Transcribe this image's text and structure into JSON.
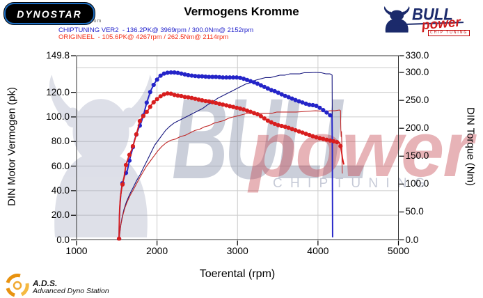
{
  "header": {
    "dynostar": {
      "text": "DYNOSTAR",
      "suffix": ".com"
    },
    "title": "Vermogens Kromme",
    "bull_logo": {
      "bull": "BULL",
      "power": "power",
      "chip": "CHIP TUNING"
    }
  },
  "legend": {
    "chiptuning": "CHIPTUNING VER2  - 136.2PK@ 3969rpm / 300.0Nm@ 2152rpm",
    "origineel": "ORIGINEEL  - 105.6PK@ 4267rpm / 262.5Nm@ 2114rpm",
    "chiptuning_color": "#2222cc",
    "origineel_color": "#f53018"
  },
  "watermark": {
    "bull": "BULL",
    "power": "power",
    "chip_tuning": "C H I P   T U N I N G"
  },
  "footer": {
    "ads_abbr": "A.D.S.",
    "ads_full": "Advanced Dyno Station"
  },
  "chart_data": {
    "type": "line",
    "title": "Vermogens Kromme",
    "xlabel": "Toerental (rpm)",
    "ylabel_left": "DIN Motor Vermogen (pk)",
    "ylabel_right": "DIN Torque (Nm)",
    "xlim": [
      1000,
      5000
    ],
    "left_ylim": [
      0,
      149.8
    ],
    "right_ylim": [
      0,
      330
    ],
    "x_ticks": [
      1000,
      2000,
      3000,
      4000,
      5000
    ],
    "left_ticks": [
      149.8,
      120,
      100,
      80,
      60,
      40,
      20,
      0
    ],
    "right_ticks": [
      330,
      300,
      250,
      200,
      150,
      100,
      50,
      0
    ],
    "grid_h_left_values": [
      20,
      40,
      60,
      80,
      100,
      120,
      140
    ],
    "grid_v_rpm": [
      2000,
      3000,
      4000
    ],
    "peaks": {
      "chiptuning_power_pk": 136.2,
      "chiptuning_power_rpm": 3969,
      "chiptuning_torque_nm": 300.0,
      "chiptuning_torque_rpm": 2152,
      "origineel_power_pk": 105.6,
      "origineel_power_rpm": 4267,
      "origineel_torque_nm": 262.5,
      "origineel_torque_rpm": 2114
    },
    "series": [
      {
        "name": "chiptuning_power",
        "axis": "left",
        "unit": "pk",
        "color": "#16167e",
        "width": 1.1,
        "marker": false,
        "points": [
          [
            1530,
            2
          ],
          [
            1545,
            10
          ],
          [
            1565,
            18
          ],
          [
            1590,
            25
          ],
          [
            1620,
            31
          ],
          [
            1660,
            37
          ],
          [
            1700,
            42
          ],
          [
            1745,
            48
          ],
          [
            1790,
            53
          ],
          [
            1835,
            59
          ],
          [
            1880,
            65
          ],
          [
            1925,
            71
          ],
          [
            1970,
            77
          ],
          [
            2015,
            81
          ],
          [
            2060,
            85
          ],
          [
            2105,
            89
          ],
          [
            2152,
            92
          ],
          [
            2210,
            95
          ],
          [
            2270,
            97
          ],
          [
            2330,
            99
          ],
          [
            2390,
            101
          ],
          [
            2450,
            103
          ],
          [
            2510,
            105
          ],
          [
            2570,
            107
          ],
          [
            2630,
            110
          ],
          [
            2690,
            112
          ],
          [
            2750,
            115
          ],
          [
            2810,
            117
          ],
          [
            2870,
            119
          ],
          [
            2930,
            121
          ],
          [
            2990,
            123
          ],
          [
            3050,
            125
          ],
          [
            3110,
            127
          ],
          [
            3170,
            128
          ],
          [
            3230,
            130
          ],
          [
            3290,
            131
          ],
          [
            3350,
            132
          ],
          [
            3410,
            132
          ],
          [
            3470,
            133
          ],
          [
            3530,
            134
          ],
          [
            3590,
            134
          ],
          [
            3650,
            135
          ],
          [
            3710,
            135
          ],
          [
            3770,
            135
          ],
          [
            3830,
            136
          ],
          [
            3890,
            136
          ],
          [
            3969,
            136.2
          ],
          [
            4040,
            136
          ],
          [
            4100,
            135
          ],
          [
            4150,
            135
          ],
          [
            4176,
            134
          ],
          [
            4178,
            90
          ],
          [
            4180,
            40
          ],
          [
            4182,
            2
          ]
        ]
      },
      {
        "name": "origineel_power",
        "axis": "left",
        "unit": "pk",
        "color": "#c02828",
        "width": 1.1,
        "marker": false,
        "points": [
          [
            1530,
            1
          ],
          [
            1550,
            12
          ],
          [
            1575,
            20
          ],
          [
            1600,
            26
          ],
          [
            1630,
            31
          ],
          [
            1665,
            36
          ],
          [
            1700,
            40
          ],
          [
            1740,
            45
          ],
          [
            1780,
            50
          ],
          [
            1825,
            55
          ],
          [
            1870,
            60
          ],
          [
            1915,
            64
          ],
          [
            1960,
            68
          ],
          [
            2005,
            72
          ],
          [
            2060,
            76
          ],
          [
            2114,
            79
          ],
          [
            2170,
            81
          ],
          [
            2230,
            82
          ],
          [
            2290,
            84
          ],
          [
            2350,
            85
          ],
          [
            2410,
            87
          ],
          [
            2470,
            89
          ],
          [
            2530,
            90
          ],
          [
            2590,
            92
          ],
          [
            2650,
            93
          ],
          [
            2710,
            95
          ],
          [
            2770,
            96
          ],
          [
            2830,
            97
          ],
          [
            2890,
            99
          ],
          [
            2950,
            100
          ],
          [
            3010,
            101
          ],
          [
            3070,
            102
          ],
          [
            3130,
            103
          ],
          [
            3250,
            103
          ],
          [
            3370,
            103
          ],
          [
            3430,
            103
          ],
          [
            3490,
            104
          ],
          [
            3610,
            104
          ],
          [
            3730,
            104
          ],
          [
            3850,
            104.5
          ],
          [
            3970,
            105
          ],
          [
            4090,
            104.5
          ],
          [
            4150,
            105
          ],
          [
            4210,
            105
          ],
          [
            4267,
            105.6
          ],
          [
            4280,
            105
          ],
          [
            4284,
            90
          ],
          [
            4288,
            84
          ],
          [
            4292,
            88
          ],
          [
            4296,
            79
          ],
          [
            4300,
            56
          ],
          [
            4303,
            54
          ]
        ]
      },
      {
        "name": "chiptuning_torque",
        "axis": "right",
        "unit": "Nm",
        "color": "#2424c8",
        "width": 1.9,
        "marker": true,
        "points": [
          [
            1528,
            2
          ],
          [
            1533,
            40
          ],
          [
            1540,
            62
          ],
          [
            1550,
            82
          ],
          [
            1565,
            98
          ],
          [
            1580,
            107
          ],
          [
            1600,
            116
          ],
          [
            1632,
            125
          ],
          [
            1660,
            144
          ],
          [
            1690,
            160
          ],
          [
            1719,
            178
          ],
          [
            1744,
            189
          ],
          [
            1775,
            201
          ],
          [
            1805,
            211
          ],
          [
            1840,
            228
          ],
          [
            1874,
            247
          ],
          [
            1920,
            267
          ],
          [
            1970,
            281
          ],
          [
            2020,
            291
          ],
          [
            2065,
            297
          ],
          [
            2110,
            299
          ],
          [
            2152,
            300
          ],
          [
            2210,
            300
          ],
          [
            2270,
            299
          ],
          [
            2330,
            297
          ],
          [
            2390,
            295
          ],
          [
            2450,
            294
          ],
          [
            2510,
            293
          ],
          [
            2570,
            293
          ],
          [
            2630,
            292
          ],
          [
            2690,
            292
          ],
          [
            2750,
            292
          ],
          [
            2810,
            291
          ],
          [
            2870,
            291
          ],
          [
            2930,
            291
          ],
          [
            2990,
            291
          ],
          [
            3050,
            290
          ],
          [
            3110,
            287
          ],
          [
            3170,
            284
          ],
          [
            3230,
            281
          ],
          [
            3290,
            277
          ],
          [
            3350,
            273
          ],
          [
            3410,
            269
          ],
          [
            3470,
            266
          ],
          [
            3530,
            262
          ],
          [
            3590,
            258
          ],
          [
            3650,
            255
          ],
          [
            3710,
            251
          ],
          [
            3770,
            248
          ],
          [
            3830,
            245
          ],
          [
            3890,
            242
          ],
          [
            3969,
            241
          ],
          [
            4030,
            236
          ],
          [
            4090,
            230
          ],
          [
            4140,
            225
          ],
          [
            4175,
            220
          ],
          [
            4178,
            160
          ],
          [
            4180,
            80
          ],
          [
            4182,
            5
          ]
        ]
      },
      {
        "name": "origineel_torque",
        "axis": "right",
        "unit": "Nm",
        "color": "#d81e1e",
        "width": 1.9,
        "marker": true,
        "points": [
          [
            1528,
            2
          ],
          [
            1531,
            30
          ],
          [
            1535,
            55
          ],
          [
            1545,
            76
          ],
          [
            1560,
            92
          ],
          [
            1589,
            111
          ],
          [
            1615,
            135
          ],
          [
            1650,
            150
          ],
          [
            1684,
            161
          ],
          [
            1712,
            173
          ],
          [
            1735,
            185
          ],
          [
            1762,
            199
          ],
          [
            1788,
            214
          ],
          [
            1835,
            223
          ],
          [
            1883,
            231
          ],
          [
            1935,
            243
          ],
          [
            1975,
            249
          ],
          [
            2015,
            254
          ],
          [
            2060,
            259
          ],
          [
            2114,
            262.5
          ],
          [
            2170,
            262
          ],
          [
            2230,
            259
          ],
          [
            2290,
            258
          ],
          [
            2350,
            256
          ],
          [
            2410,
            255
          ],
          [
            2470,
            253
          ],
          [
            2530,
            251
          ],
          [
            2590,
            249
          ],
          [
            2650,
            248
          ],
          [
            2710,
            246
          ],
          [
            2770,
            244
          ],
          [
            2830,
            242
          ],
          [
            2890,
            240
          ],
          [
            2950,
            238
          ],
          [
            3010,
            236
          ],
          [
            3070,
            234
          ],
          [
            3130,
            231
          ],
          [
            3190,
            228
          ],
          [
            3250,
            225
          ],
          [
            3310,
            220
          ],
          [
            3370,
            214
          ],
          [
            3430,
            210
          ],
          [
            3490,
            206
          ],
          [
            3550,
            204
          ],
          [
            3610,
            202
          ],
          [
            3670,
            199
          ],
          [
            3730,
            196
          ],
          [
            3790,
            193
          ],
          [
            3850,
            190
          ],
          [
            3910,
            187
          ],
          [
            3970,
            184
          ],
          [
            4030,
            182
          ],
          [
            4090,
            180
          ],
          [
            4150,
            178
          ],
          [
            4210,
            176
          ],
          [
            4270,
            174
          ],
          [
            4285,
            165
          ],
          [
            4295,
            156
          ],
          [
            4305,
            146
          ],
          [
            4315,
            139
          ],
          [
            4322,
            135
          ]
        ]
      }
    ],
    "marker_step_rpm": 43,
    "marker_radius": 3.1
  }
}
